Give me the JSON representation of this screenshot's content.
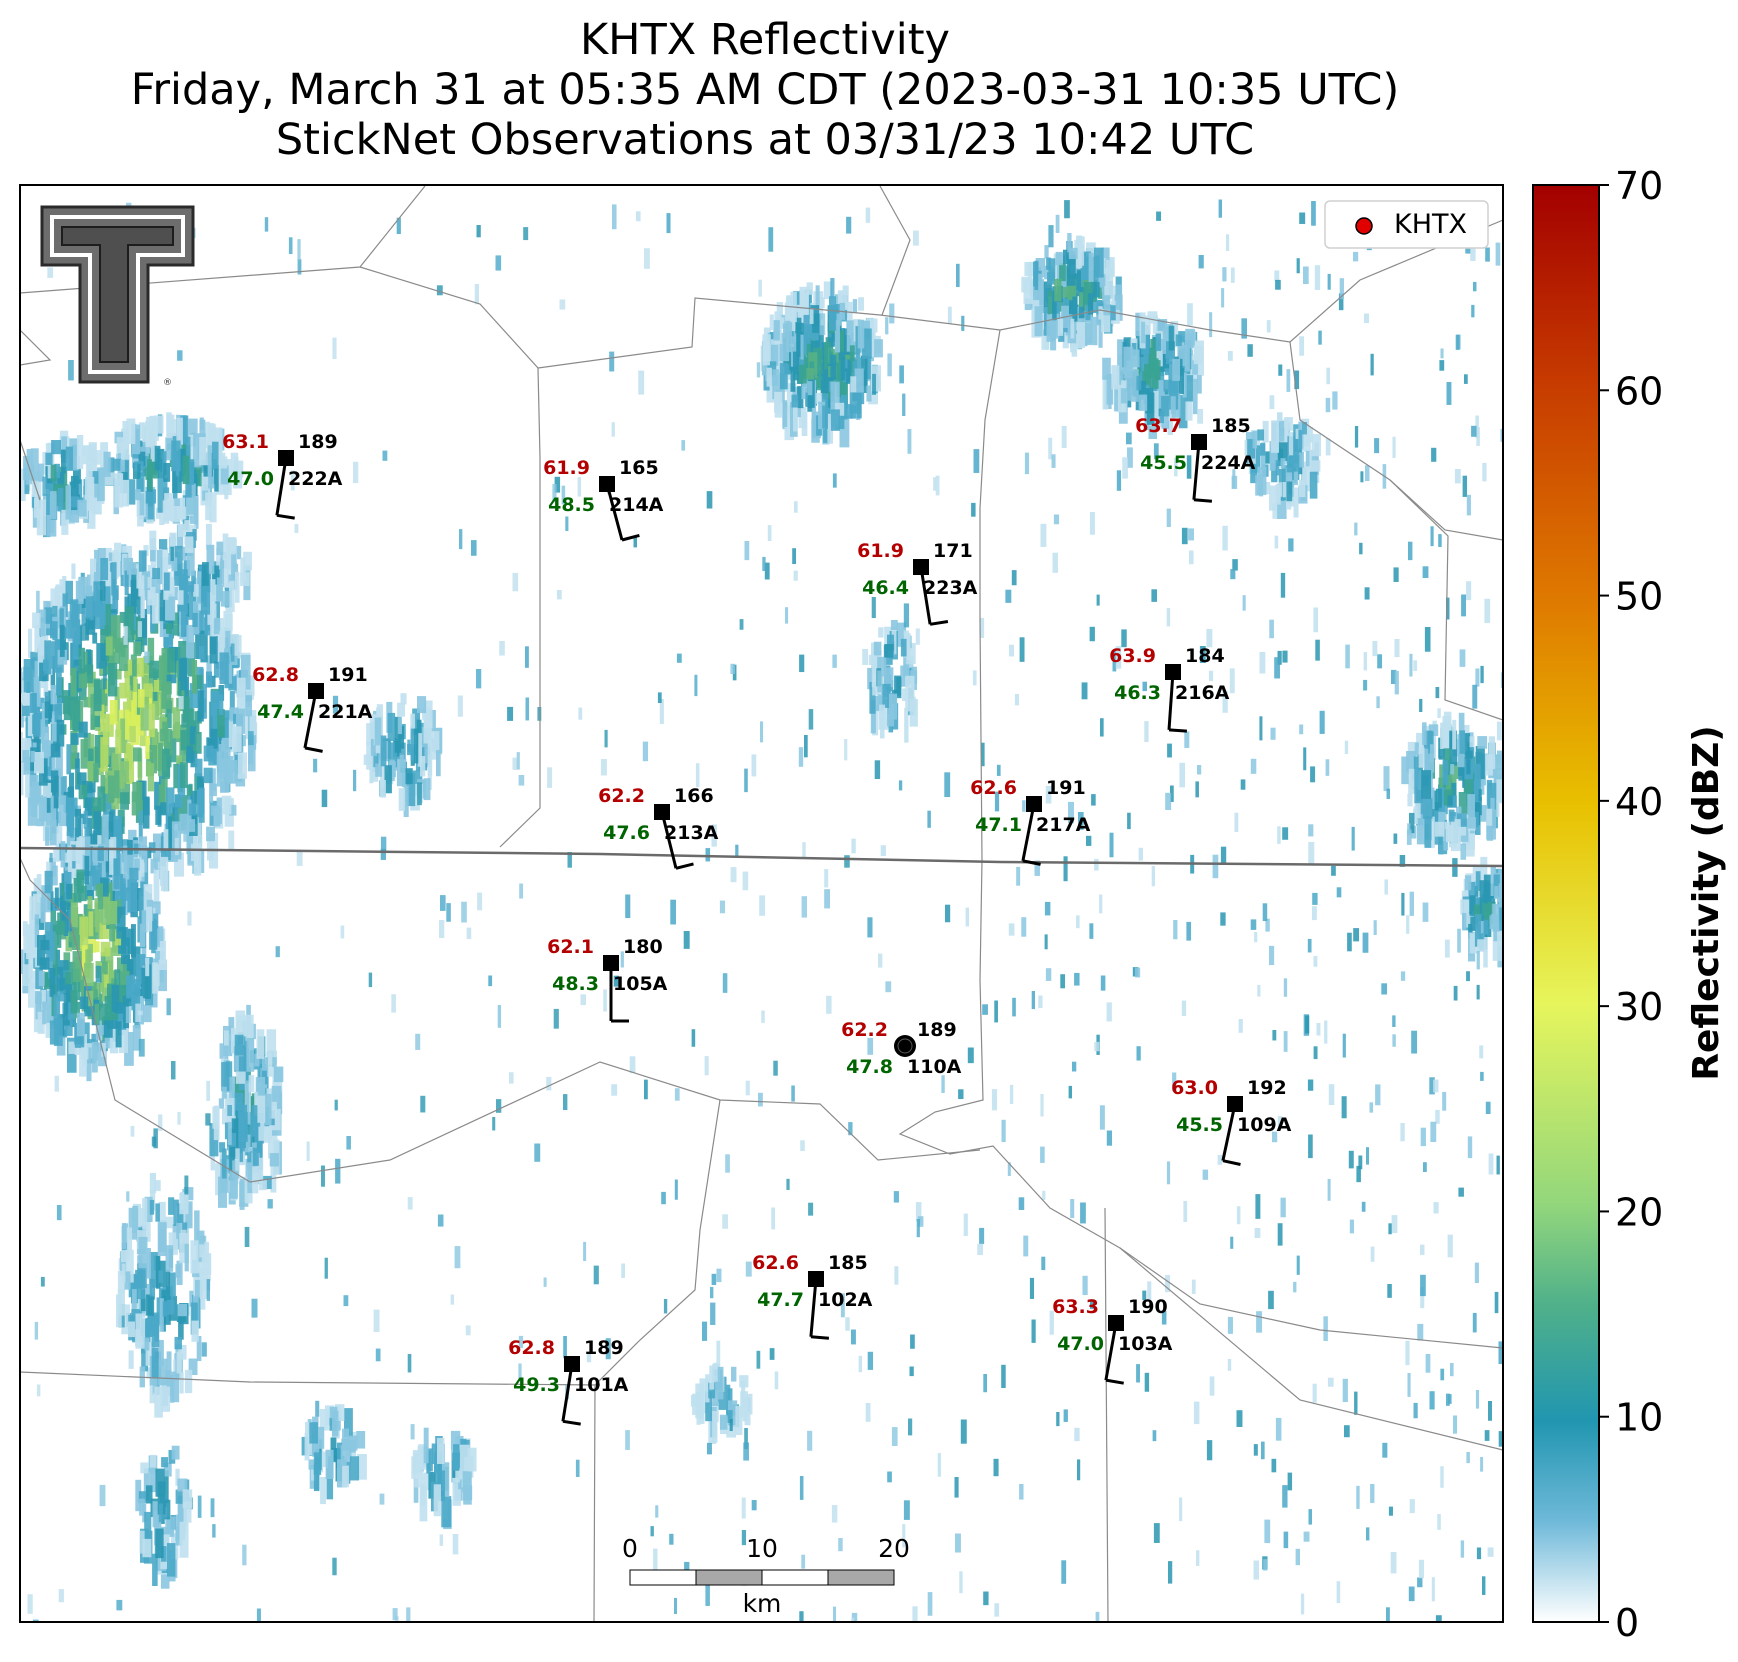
{
  "title": {
    "line1": "KHTX Reflectivity",
    "line2": "Friday, March 31 at 05:35 AM CDT (2023-03-31 10:35 UTC)",
    "line3": "StickNet Observations at 03/31/23 10:42 UTC"
  },
  "legend": {
    "label": "KHTX",
    "marker_color": "#e00000"
  },
  "colorbar": {
    "label": "Reflectivity (dBZ)",
    "ticks": [
      "0",
      "10",
      "20",
      "30",
      "40",
      "50",
      "60",
      "70"
    ],
    "range": [
      0,
      70
    ],
    "stops": [
      "#ffffff",
      "#6fb9d9",
      "#2196b0",
      "#4fb08a",
      "#92d67c",
      "#e6f55c",
      "#e8c000",
      "#df7a00",
      "#c73c00",
      "#a30000"
    ]
  },
  "scale_bar": {
    "ticks": [
      "0",
      "10",
      "20"
    ],
    "unit": "km"
  },
  "radar_site": {
    "name": "KHTX",
    "color": "#000000"
  },
  "stations": [
    {
      "id": "222A",
      "temp": "63.1",
      "dew": "47.0",
      "dir": "189"
    },
    {
      "id": "214A",
      "temp": "61.9",
      "dew": "48.5",
      "dir": "165"
    },
    {
      "id": "223A",
      "temp": "61.9",
      "dew": "46.4",
      "dir": "171"
    },
    {
      "id": "224A",
      "temp": "63.7",
      "dew": "45.5",
      "dir": "185"
    },
    {
      "id": "221A",
      "temp": "62.8",
      "dew": "47.4",
      "dir": "191"
    },
    {
      "id": "216A",
      "temp": "63.9",
      "dew": "46.3",
      "dir": "184"
    },
    {
      "id": "213A",
      "temp": "62.2",
      "dew": "47.6",
      "dir": "166"
    },
    {
      "id": "217A",
      "temp": "62.6",
      "dew": "47.1",
      "dir": "191"
    },
    {
      "id": "105A",
      "temp": "62.1",
      "dew": "48.3",
      "dir": "180"
    },
    {
      "id": "110A",
      "temp": "62.2",
      "dew": "47.8",
      "dir": "189"
    },
    {
      "id": "109A",
      "temp": "63.0",
      "dew": "45.5",
      "dir": "192"
    },
    {
      "id": "102A",
      "temp": "62.6",
      "dew": "47.7",
      "dir": "185"
    },
    {
      "id": "103A",
      "temp": "63.3",
      "dew": "47.0",
      "dir": "190"
    },
    {
      "id": "101A",
      "temp": "62.8",
      "dew": "49.3",
      "dir": "189"
    }
  ],
  "colors": {
    "temp": "#b30000",
    "dew": "#006400",
    "label": "#000000"
  }
}
